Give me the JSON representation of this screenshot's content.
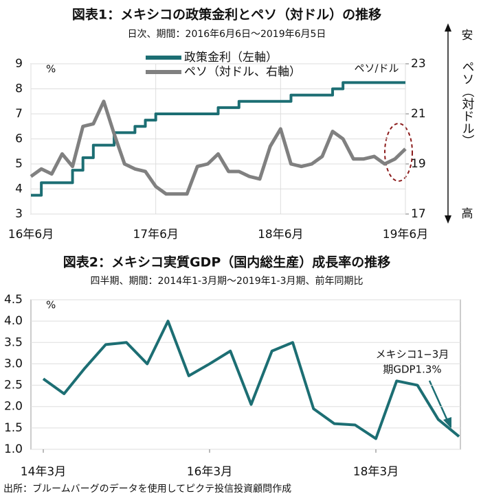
{
  "chart_data": [
    {
      "type": "line",
      "title": "図表1：メキシコの政策金利とペソ（対ドル）の推移",
      "subtitle": "日次、期間：2016年6月6日～2019年6月5日",
      "ylabel": "%",
      "y2label": "ペソ（対ドル）",
      "y2_top": "安",
      "y2_bottom": "高",
      "annotation": "ペソ/ドル",
      "x": [
        "2016-06",
        "2016-07",
        "2016-08",
        "2016-09",
        "2016-10",
        "2016-11",
        "2016-12",
        "2017-01",
        "2017-02",
        "2017-03",
        "2017-04",
        "2017-05",
        "2017-06",
        "2017-07",
        "2017-08",
        "2017-09",
        "2017-10",
        "2017-11",
        "2017-12",
        "2018-01",
        "2018-02",
        "2018-03",
        "2018-04",
        "2018-05",
        "2018-06",
        "2018-07",
        "2018-08",
        "2018-09",
        "2018-10",
        "2018-11",
        "2018-12",
        "2019-01",
        "2019-02",
        "2019-03",
        "2019-04",
        "2019-05",
        "2019-06"
      ],
      "series": [
        {
          "name": "政策金利（左軸）",
          "color": "#1c6e73",
          "step": true,
          "values": [
            3.75,
            4.25,
            4.25,
            4.25,
            4.75,
            5.25,
            5.75,
            5.75,
            6.25,
            6.25,
            6.5,
            6.75,
            7.0,
            7.0,
            7.0,
            7.0,
            7.0,
            7.0,
            7.25,
            7.25,
            7.5,
            7.5,
            7.5,
            7.5,
            7.5,
            7.75,
            7.75,
            7.75,
            7.75,
            8.0,
            8.25,
            8.25,
            8.25,
            8.25,
            8.25,
            8.25,
            8.25
          ]
        },
        {
          "name": "ペソ（対ドル、右軸）",
          "color": "#808080",
          "axis": "y2",
          "values": [
            18.5,
            18.8,
            18.6,
            19.4,
            18.9,
            20.5,
            20.6,
            21.5,
            20.2,
            19.0,
            18.8,
            18.7,
            18.1,
            17.8,
            17.8,
            17.8,
            18.9,
            19.0,
            19.4,
            18.7,
            18.7,
            18.5,
            18.4,
            19.7,
            20.4,
            19.0,
            18.9,
            19.0,
            19.3,
            20.3,
            20.0,
            19.2,
            19.2,
            19.3,
            19.0,
            19.2,
            19.6
          ]
        }
      ],
      "xticks": [
        {
          "value": "2016-06",
          "label": "16年6月"
        },
        {
          "value": "2017-06",
          "label": "17年6月"
        },
        {
          "value": "2018-06",
          "label": "18年6月"
        },
        {
          "value": "2019-06",
          "label": "19年6月"
        }
      ],
      "ylim": [
        3,
        9
      ],
      "yticks": [
        3,
        4,
        5,
        6,
        7,
        8,
        9
      ],
      "y2lim": [
        17,
        23
      ],
      "y2ticks": [
        17,
        19,
        21,
        23
      ],
      "grid": true
    },
    {
      "type": "line",
      "title": "図表2：メキシコ実質GDP（国内総生産）成長率の推移",
      "subtitle": "四半期、期間：2014年1-3月期～2019年1-3月期、前年同期比",
      "ylabel": "%",
      "annotation": [
        "メキシコ1−3月",
        "期GDP1.3%"
      ],
      "categories": [
        "14年3月",
        null,
        null,
        null,
        null,
        null,
        null,
        null,
        "16年3月",
        null,
        null,
        null,
        null,
        null,
        null,
        null,
        "18年3月",
        null,
        null,
        null,
        null
      ],
      "series": [
        {
          "name": "GDP",
          "color": "#1c6e73",
          "values": [
            2.65,
            2.3,
            2.9,
            3.45,
            3.5,
            3.0,
            4.0,
            2.72,
            3.0,
            3.3,
            2.05,
            3.3,
            3.5,
            1.95,
            1.6,
            1.57,
            1.25,
            2.6,
            2.5,
            1.7,
            1.3
          ]
        }
      ],
      "ylim": [
        1.0,
        4.5
      ],
      "yticks": [
        {
          "value": 1.0,
          "label": "1.0"
        },
        1.5,
        {
          "value": 2.0,
          "label": "2.0"
        },
        2.5,
        {
          "value": 3.0,
          "label": "3.0"
        },
        3.5,
        {
          "value": 4.0,
          "label": "4.0"
        },
        4.5
      ],
      "grid": true
    }
  ],
  "source": "出所：ブルームバーグのデータを使用してピクテ投信投資顧問作成"
}
